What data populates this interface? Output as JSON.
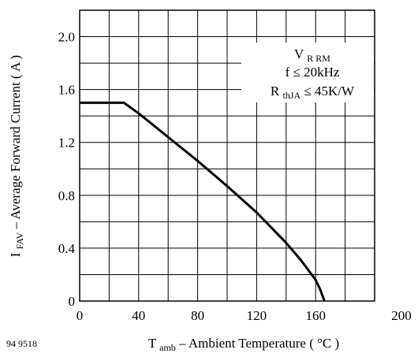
{
  "chart_data": {
    "type": "line",
    "title": "",
    "figure_code": "94 9518",
    "x_axis": {
      "label_main": "T",
      "label_sub": "amb",
      "label_rest": " – Ambient Temperature ( °C )",
      "range": [
        0,
        200
      ],
      "ticks": [
        0,
        40,
        80,
        120,
        160,
        200
      ],
      "tick_labels": [
        "0",
        "40",
        "80",
        "120",
        "160",
        "200"
      ],
      "grid_step": 20
    },
    "y_axis": {
      "label_main": "I",
      "label_sub": "FAV",
      "label_rest": "– Average Forward Current ( A )",
      "range": [
        0,
        2.2
      ],
      "ticks": [
        0,
        0.4,
        0.8,
        1.2,
        1.6,
        2.0
      ],
      "tick_labels": [
        "0",
        "0.4",
        "0.8",
        "1.2",
        "1.6",
        "2.0"
      ],
      "grid_step": 0.2
    },
    "grid": true,
    "annotation": {
      "line1_main": "V",
      "line1_sub": "R RM",
      "line2": "f ≤ 20kHz",
      "line3_main": "R",
      "line3_sub": "thJA",
      "line3_rest": " ≤ 45K/W"
    },
    "series": [
      {
        "x": [
          0,
          30,
          40,
          60,
          80,
          100,
          120,
          140,
          150,
          160,
          163,
          166
        ],
        "y": [
          1.5,
          1.5,
          1.42,
          1.24,
          1.06,
          0.87,
          0.67,
          0.44,
          0.31,
          0.16,
          0.09,
          0.0
        ]
      }
    ],
    "colors": {
      "line": "#000000",
      "grid": "#000000",
      "background": "#ffffff"
    }
  }
}
